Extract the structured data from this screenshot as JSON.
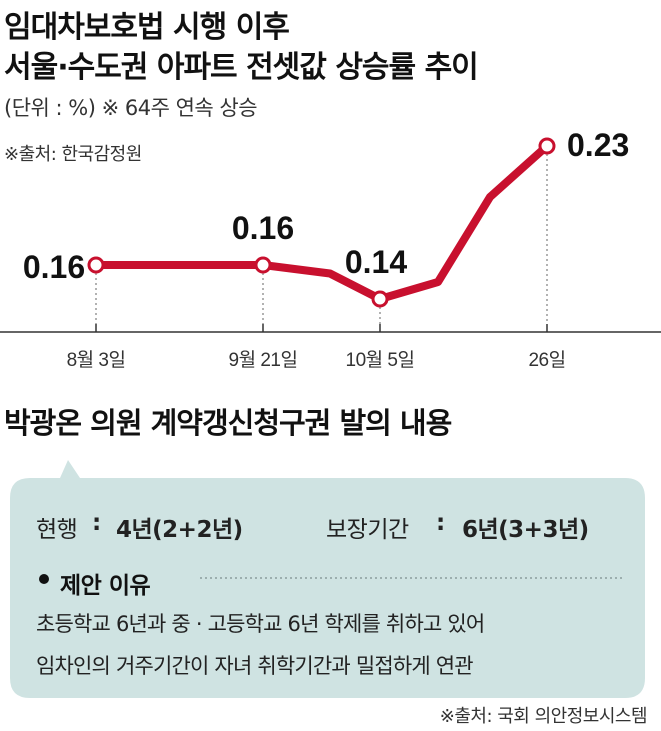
{
  "header": {
    "title_line1": "임대차보호법 시행 이후",
    "title_line2": "서울·수도권 아파트 전셋값 상승률 추이",
    "unit_note": "(단위 : %)   ※ 64주 연속 상승",
    "source": "※출처: 한국감정원"
  },
  "chart_data": {
    "type": "line",
    "title": "",
    "xlabel": "",
    "ylabel": "",
    "x": [
      "8월 3일",
      "9월 21일",
      "",
      "10월 5일",
      "",
      "",
      "26일"
    ],
    "series": [
      {
        "values": [
          0.16,
          0.16,
          0.155,
          0.14,
          0.15,
          0.2,
          0.23
        ]
      }
    ],
    "labeled_points": [
      {
        "x": "8월 3일",
        "label": "0.16"
      },
      {
        "x": "9월 21일",
        "label": "0.16"
      },
      {
        "x": "10월 5일",
        "label": "0.14"
      },
      {
        "x": "26일",
        "label": "0.23"
      }
    ],
    "line_color": "#c8102e",
    "grid": false
  },
  "proposal": {
    "section_title": "박광온 의원 계약갱신청구권 발의 내용",
    "current_label": "현행",
    "current_value": "4년(2+2년)",
    "guarantee_label": "보장기간",
    "guarantee_value": "6년(3+3년)",
    "separator": ":",
    "reason_title": "제안 이유",
    "reason_line1": "초등학교 6년과 중 · 고등학교 6년 학제를 취하고 있어",
    "reason_line2": "임차인의 거주기간이 자녀 취학기간과 밀접하게 연관",
    "panel_color": "#cfe3e2",
    "source": "※출처: 국회 의안정보시스템"
  }
}
